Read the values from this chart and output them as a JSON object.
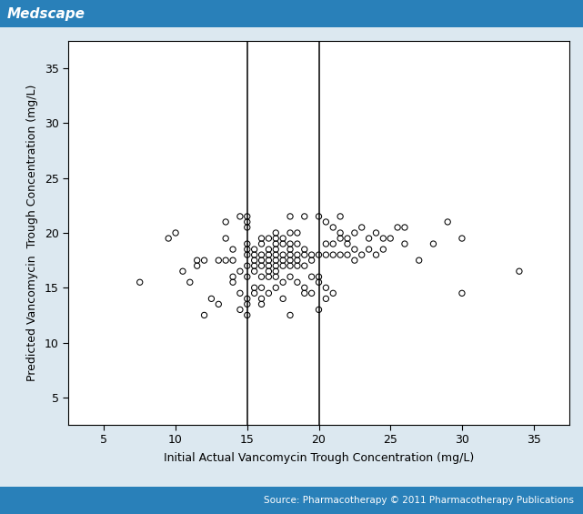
{
  "scatter_x": [
    7.5,
    9.5,
    10.0,
    10.5,
    11.0,
    11.5,
    11.5,
    12.0,
    12.0,
    12.5,
    13.0,
    13.0,
    13.5,
    13.5,
    13.5,
    14.0,
    14.0,
    14.0,
    14.0,
    14.5,
    14.5,
    14.5,
    14.5,
    15.0,
    15.0,
    15.0,
    15.0,
    15.0,
    15.0,
    15.0,
    15.0,
    15.0,
    15.0,
    15.0,
    15.5,
    15.5,
    15.5,
    15.5,
    15.5,
    15.5,
    15.5,
    16.0,
    16.0,
    16.0,
    16.0,
    16.0,
    16.0,
    16.0,
    16.0,
    16.0,
    16.5,
    16.5,
    16.5,
    16.5,
    16.5,
    16.5,
    16.5,
    16.5,
    17.0,
    17.0,
    17.0,
    17.0,
    17.0,
    17.0,
    17.0,
    17.0,
    17.0,
    17.0,
    17.5,
    17.5,
    17.5,
    17.5,
    17.5,
    17.5,
    17.5,
    18.0,
    18.0,
    18.0,
    18.0,
    18.0,
    18.0,
    18.0,
    18.0,
    18.0,
    18.5,
    18.5,
    18.5,
    18.5,
    18.5,
    18.5,
    19.0,
    19.0,
    19.0,
    19.0,
    19.0,
    19.0,
    19.5,
    19.5,
    19.5,
    19.5,
    20.0,
    20.0,
    20.0,
    20.0,
    20.0,
    20.5,
    20.5,
    20.5,
    20.5,
    20.5,
    21.0,
    21.0,
    21.0,
    21.0,
    21.5,
    21.5,
    21.5,
    21.5,
    22.0,
    22.0,
    22.0,
    22.5,
    22.5,
    22.5,
    23.0,
    23.0,
    23.5,
    23.5,
    24.0,
    24.0,
    24.5,
    24.5,
    25.0,
    25.5,
    26.0,
    26.0,
    27.0,
    28.0,
    29.0,
    30.0,
    30.0,
    34.0
  ],
  "scatter_y": [
    15.5,
    19.5,
    20.0,
    16.5,
    15.5,
    17.0,
    17.5,
    12.5,
    17.5,
    14.0,
    13.5,
    17.5,
    17.5,
    19.5,
    21.0,
    15.5,
    16.0,
    17.5,
    18.5,
    13.0,
    14.5,
    16.5,
    21.5,
    12.5,
    13.5,
    14.0,
    16.0,
    17.0,
    18.0,
    18.5,
    19.0,
    20.5,
    21.0,
    21.5,
    14.5,
    15.0,
    16.5,
    17.0,
    17.5,
    18.0,
    18.5,
    13.5,
    14.0,
    15.0,
    16.0,
    17.0,
    17.5,
    18.0,
    19.0,
    19.5,
    14.5,
    16.0,
    16.5,
    17.0,
    17.5,
    18.0,
    18.5,
    19.5,
    15.0,
    16.0,
    16.5,
    17.0,
    17.5,
    18.0,
    18.5,
    19.0,
    19.5,
    20.0,
    14.0,
    15.5,
    17.0,
    17.5,
    18.0,
    19.0,
    19.5,
    12.5,
    16.0,
    17.0,
    17.5,
    18.0,
    18.5,
    19.0,
    20.0,
    21.5,
    15.5,
    17.0,
    17.5,
    18.0,
    19.0,
    20.0,
    14.5,
    15.0,
    17.0,
    18.0,
    18.5,
    21.5,
    14.5,
    16.0,
    17.5,
    18.0,
    13.0,
    15.5,
    16.0,
    18.0,
    21.5,
    14.0,
    15.0,
    18.0,
    19.0,
    21.0,
    14.5,
    18.0,
    19.0,
    20.5,
    18.0,
    19.5,
    20.0,
    21.5,
    18.0,
    19.0,
    19.5,
    17.5,
    18.5,
    20.0,
    18.0,
    20.5,
    18.5,
    19.5,
    18.0,
    20.0,
    18.5,
    19.5,
    19.5,
    20.5,
    19.0,
    20.5,
    17.5,
    19.0,
    21.0,
    14.5,
    19.5,
    16.5
  ],
  "vline1": 15.0,
  "vline2": 20.0,
  "xlim": [
    2.5,
    37.5
  ],
  "ylim": [
    2.5,
    37.5
  ],
  "xticks": [
    5,
    10,
    15,
    20,
    25,
    30,
    35
  ],
  "yticks": [
    5,
    10,
    15,
    20,
    25,
    30,
    35
  ],
  "xlabel": "Initial Actual Vancomycin Trough Concentration (mg/L)",
  "ylabel": "Predicted Vancomycin  Trough Concentration (mg/L)",
  "marker_size": 4.5,
  "header_bg_color": "#2980b9",
  "header_text": "Medscape",
  "header_text_color": "#ffffff",
  "footer_bg_color": "#2980b9",
  "footer_text": "Source: Pharmacotherapy © 2011 Pharmacotherapy Publications",
  "footer_text_color": "#ffffff",
  "plot_bg_color": "#ffffff",
  "fig_bg_color": "#dce8f0",
  "fig_width": 6.41,
  "fig_height": 5.65,
  "fig_dpi": 100
}
